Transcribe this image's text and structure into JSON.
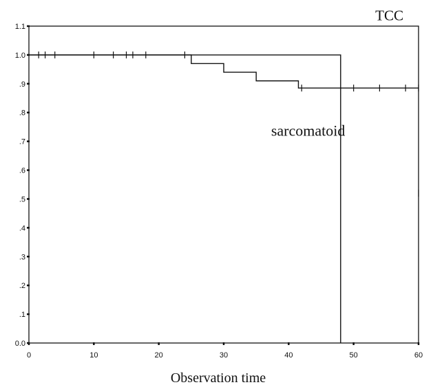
{
  "chart_data": {
    "type": "line",
    "title": "",
    "xlabel": "Observation time",
    "ylabel": "",
    "xlim": [
      0,
      60
    ],
    "ylim": [
      0.0,
      1.1
    ],
    "x_ticks": [
      0,
      10,
      20,
      30,
      40,
      50,
      60
    ],
    "y_ticks": [
      0.0,
      0.1,
      0.2,
      0.3,
      0.4,
      0.5,
      0.6,
      0.7,
      0.8,
      0.9,
      1.0,
      1.1
    ],
    "y_tick_labels": [
      "0.0",
      ".1",
      ".2",
      ".3",
      ".4",
      ".5",
      ".6",
      ".7",
      ".8",
      ".9",
      "1.0",
      "1.1"
    ],
    "grid": false,
    "series": [
      {
        "name": "TCC",
        "steps": [
          [
            0,
            1.0
          ],
          [
            25,
            0.97
          ],
          [
            30,
            0.94
          ],
          [
            35,
            0.91
          ],
          [
            41.5,
            0.885
          ],
          [
            60,
            0.885
          ]
        ],
        "censored": [
          [
            1.5,
            1.0
          ],
          [
            2.5,
            1.0
          ],
          [
            4,
            1.0
          ],
          [
            10,
            1.0
          ],
          [
            13,
            1.0
          ],
          [
            15,
            1.0
          ],
          [
            16,
            1.0
          ],
          [
            18,
            1.0
          ],
          [
            24,
            1.0
          ],
          [
            42,
            0.885
          ],
          [
            50,
            0.885
          ],
          [
            54,
            0.885
          ],
          [
            58,
            0.885
          ],
          [
            60,
            0.885
          ],
          [
            60,
            0.52
          ]
        ]
      },
      {
        "name": "sarcomatoid",
        "steps": [
          [
            0,
            1.0
          ],
          [
            48,
            1.0
          ],
          [
            48,
            0.0
          ]
        ],
        "censored": []
      }
    ],
    "annotations": [
      {
        "text": "TCC",
        "x": 55.5,
        "y": 1.12
      },
      {
        "text": "sarcomatoid",
        "x": 43,
        "y": 0.72
      }
    ]
  }
}
